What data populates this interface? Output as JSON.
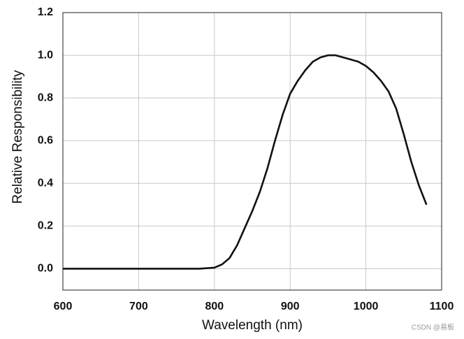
{
  "chart_data": {
    "type": "line",
    "xlabel": "Wavelength (nm)",
    "ylabel": "Relative Responsibility",
    "x": [
      600,
      650,
      700,
      750,
      780,
      800,
      810,
      820,
      830,
      840,
      850,
      860,
      870,
      880,
      890,
      900,
      910,
      920,
      930,
      940,
      950,
      960,
      970,
      980,
      990,
      1000,
      1010,
      1020,
      1030,
      1040,
      1050,
      1060,
      1070,
      1080
    ],
    "series": [
      {
        "color": "#111111",
        "values": [
          0,
          0,
          0,
          0,
          0,
          0.005,
          0.02,
          0.05,
          0.11,
          0.19,
          0.27,
          0.36,
          0.47,
          0.6,
          0.72,
          0.82,
          0.88,
          0.93,
          0.97,
          0.99,
          1.0,
          1.0,
          0.99,
          0.98,
          0.97,
          0.95,
          0.92,
          0.88,
          0.83,
          0.75,
          0.63,
          0.5,
          0.39,
          0.3
        ]
      }
    ],
    "xlim": [
      600,
      1100
    ],
    "xticks": [
      600,
      700,
      800,
      900,
      1000,
      1100
    ],
    "ylim": [
      -0.1,
      1.2
    ],
    "yticks": [
      {
        "value": 0,
        "label": "0.0"
      },
      0.2,
      0.4,
      0.6,
      0.8,
      {
        "value": 1,
        "label": "1.0"
      },
      1.2
    ],
    "grid": true,
    "annotation": "CSDN @易板"
  }
}
